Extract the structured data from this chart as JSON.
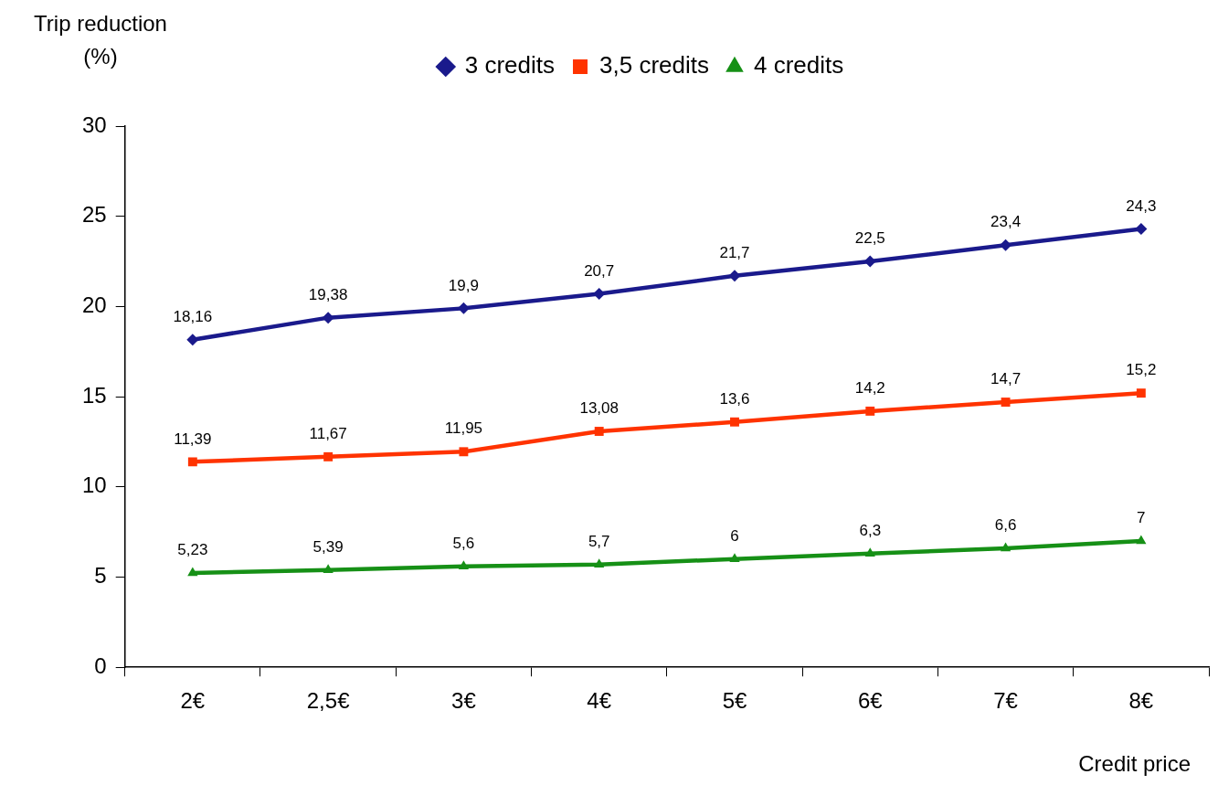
{
  "chart_data": {
    "type": "line",
    "xlabel": "Credit price",
    "ylabel": "Trip reduction (%)",
    "categories": [
      "2€",
      "2,5€",
      "3€",
      "4€",
      "5€",
      "6€",
      "7€",
      "8€"
    ],
    "series": [
      {
        "name": "3 credits",
        "color": "#1a1a8c",
        "marker": "diamond",
        "values": [
          18.16,
          19.38,
          19.9,
          20.7,
          21.7,
          22.5,
          23.4,
          24.3
        ],
        "value_labels": [
          "18,16",
          "19,38",
          "19,9",
          "20,7",
          "21,7",
          "22,5",
          "23,4",
          "24,3"
        ]
      },
      {
        "name": "3,5 credits",
        "color": "#ff3300",
        "marker": "square",
        "values": [
          11.39,
          11.67,
          11.95,
          13.08,
          13.6,
          14.2,
          14.7,
          15.2
        ],
        "value_labels": [
          "11,39",
          "11,67",
          "11,95",
          "13,08",
          "13,6",
          "14,2",
          "14,7",
          "15,2"
        ]
      },
      {
        "name": "4 credits",
        "color": "#169016",
        "marker": "triangle",
        "values": [
          5.23,
          5.39,
          5.6,
          5.7,
          6,
          6.3,
          6.6,
          7
        ],
        "value_labels": [
          "5,23",
          "5,39",
          "5,6",
          "5,7",
          "6",
          "6,3",
          "6,6",
          "7"
        ]
      }
    ],
    "ylim": [
      0,
      30
    ],
    "yticks": [
      0,
      5,
      10,
      15,
      20,
      25,
      30
    ],
    "grid": false,
    "legend": "top",
    "line_style": "solid"
  }
}
